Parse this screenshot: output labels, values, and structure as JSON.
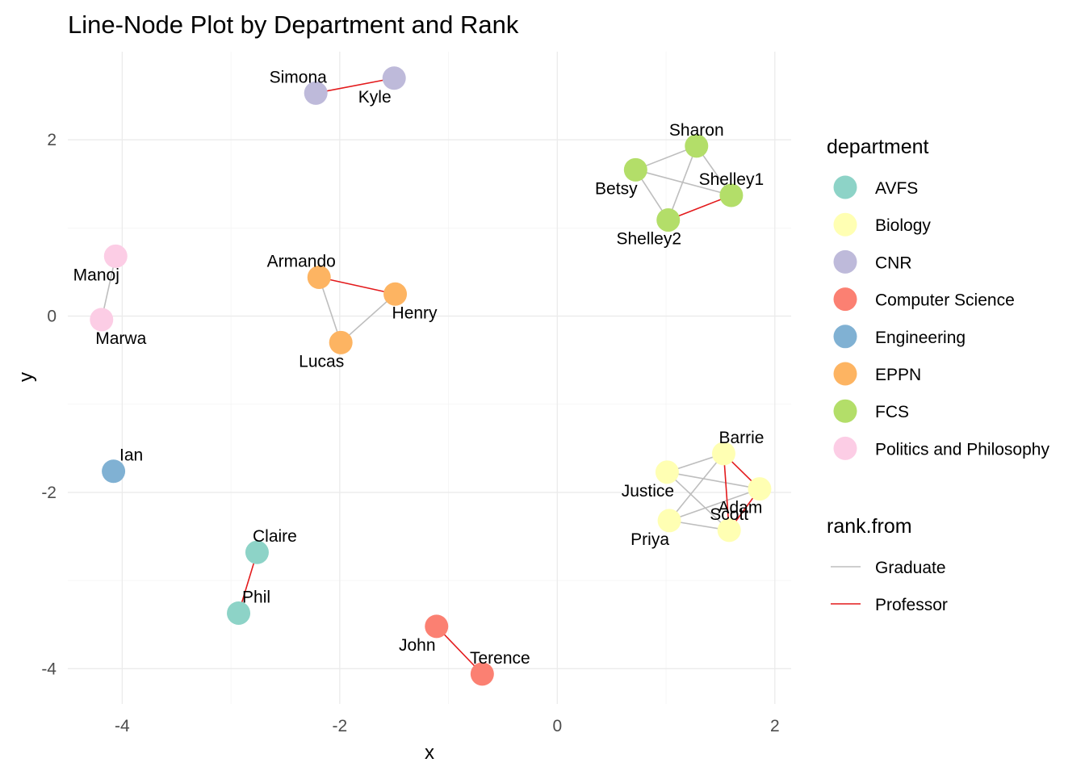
{
  "chart_data": {
    "type": "network",
    "title": "Line-Node Plot by Department and Rank",
    "xlabel": "x",
    "ylabel": "y",
    "xlim": [
      -4.5,
      2.15
    ],
    "ylim": [
      -4.4,
      3.0
    ],
    "x_ticks": [
      -4,
      -2,
      0,
      2
    ],
    "y_ticks": [
      -4,
      -2,
      0,
      2
    ],
    "grid": true,
    "legend_position": "right",
    "departments": [
      {
        "name": "AVFS",
        "color": "#8dd3c7"
      },
      {
        "name": "Biology",
        "color": "#ffffb3"
      },
      {
        "name": "CNR",
        "color": "#bebada"
      },
      {
        "name": "Computer Science",
        "color": "#fb8072"
      },
      {
        "name": "Engineering",
        "color": "#80b1d3"
      },
      {
        "name": "EPPN",
        "color": "#fdb462"
      },
      {
        "name": "FCS",
        "color": "#b3de69"
      },
      {
        "name": "Politics and Philosophy",
        "color": "#fccde5"
      }
    ],
    "ranks": [
      {
        "name": "Graduate",
        "color": "#bebebe"
      },
      {
        "name": "Professor",
        "color": "#e31a1c"
      }
    ],
    "legend_titles": {
      "color": "department",
      "line": "rank.from"
    },
    "nodes": [
      {
        "name": "Simona",
        "x": -2.22,
        "y": 2.53,
        "dept": "CNR",
        "label_pos": "above-left"
      },
      {
        "name": "Kyle",
        "x": -1.5,
        "y": 2.7,
        "dept": "CNR",
        "label_pos": "below-left"
      },
      {
        "name": "Sharon",
        "x": 1.28,
        "y": 1.93,
        "dept": "FCS",
        "label_pos": "above"
      },
      {
        "name": "Betsy",
        "x": 0.72,
        "y": 1.66,
        "dept": "FCS",
        "label_pos": "below-left"
      },
      {
        "name": "Shelley1",
        "x": 1.6,
        "y": 1.37,
        "dept": "FCS",
        "label_pos": "above"
      },
      {
        "name": "Shelley2",
        "x": 1.02,
        "y": 1.09,
        "dept": "FCS",
        "label_pos": "below-left"
      },
      {
        "name": "Manoj",
        "x": -4.06,
        "y": 0.68,
        "dept": "Politics and Philosophy",
        "label_pos": "below-left"
      },
      {
        "name": "Marwa",
        "x": -4.19,
        "y": -0.04,
        "dept": "Politics and Philosophy",
        "label_pos": "below-right"
      },
      {
        "name": "Armando",
        "x": -2.19,
        "y": 0.44,
        "dept": "EPPN",
        "label_pos": "above-left"
      },
      {
        "name": "Henry",
        "x": -1.49,
        "y": 0.25,
        "dept": "EPPN",
        "label_pos": "below-right"
      },
      {
        "name": "Lucas",
        "x": -1.99,
        "y": -0.3,
        "dept": "EPPN",
        "label_pos": "below-left"
      },
      {
        "name": "Ian",
        "x": -4.08,
        "y": -1.76,
        "dept": "Engineering",
        "label_pos": "above-right"
      },
      {
        "name": "Barrie",
        "x": 1.53,
        "y": -1.56,
        "dept": "Biology",
        "label_pos": "above-right"
      },
      {
        "name": "Justice",
        "x": 1.01,
        "y": -1.77,
        "dept": "Biology",
        "label_pos": "below-left"
      },
      {
        "name": "Adam",
        "x": 1.86,
        "y": -1.96,
        "dept": "Biology",
        "label_pos": "below-left"
      },
      {
        "name": "Priya",
        "x": 1.03,
        "y": -2.32,
        "dept": "Biology",
        "label_pos": "below-left"
      },
      {
        "name": "Scott",
        "x": 1.58,
        "y": -2.43,
        "dept": "Biology",
        "label_pos": "above"
      },
      {
        "name": "Claire",
        "x": -2.76,
        "y": -2.68,
        "dept": "AVFS",
        "label_pos": "above-right"
      },
      {
        "name": "Phil",
        "x": -2.93,
        "y": -3.37,
        "dept": "AVFS",
        "label_pos": "above-right"
      },
      {
        "name": "John",
        "x": -1.11,
        "y": -3.52,
        "dept": "Computer Science",
        "label_pos": "below-left"
      },
      {
        "name": "Terence",
        "x": -0.69,
        "y": -4.06,
        "dept": "Computer Science",
        "label_pos": "above-right"
      }
    ],
    "edges": [
      {
        "from": "Simona",
        "to": "Kyle",
        "rank": "Professor"
      },
      {
        "from": "Betsy",
        "to": "Sharon",
        "rank": "Graduate"
      },
      {
        "from": "Betsy",
        "to": "Shelley1",
        "rank": "Graduate"
      },
      {
        "from": "Betsy",
        "to": "Shelley2",
        "rank": "Graduate"
      },
      {
        "from": "Sharon",
        "to": "Shelley1",
        "rank": "Graduate"
      },
      {
        "from": "Sharon",
        "to": "Shelley2",
        "rank": "Graduate"
      },
      {
        "from": "Shelley2",
        "to": "Shelley1",
        "rank": "Professor"
      },
      {
        "from": "Manoj",
        "to": "Marwa",
        "rank": "Graduate"
      },
      {
        "from": "Armando",
        "to": "Henry",
        "rank": "Professor"
      },
      {
        "from": "Armando",
        "to": "Lucas",
        "rank": "Graduate"
      },
      {
        "from": "Lucas",
        "to": "Henry",
        "rank": "Graduate"
      },
      {
        "from": "Justice",
        "to": "Barrie",
        "rank": "Graduate"
      },
      {
        "from": "Justice",
        "to": "Adam",
        "rank": "Graduate"
      },
      {
        "from": "Justice",
        "to": "Scott",
        "rank": "Graduate"
      },
      {
        "from": "Priya",
        "to": "Barrie",
        "rank": "Graduate"
      },
      {
        "from": "Priya",
        "to": "Adam",
        "rank": "Graduate"
      },
      {
        "from": "Priya",
        "to": "Scott",
        "rank": "Graduate"
      },
      {
        "from": "Barrie",
        "to": "Adam",
        "rank": "Professor"
      },
      {
        "from": "Barrie",
        "to": "Scott",
        "rank": "Professor"
      },
      {
        "from": "Adam",
        "to": "Scott",
        "rank": "Professor"
      },
      {
        "from": "Claire",
        "to": "Phil",
        "rank": "Professor"
      },
      {
        "from": "John",
        "to": "Terence",
        "rank": "Professor"
      }
    ]
  }
}
